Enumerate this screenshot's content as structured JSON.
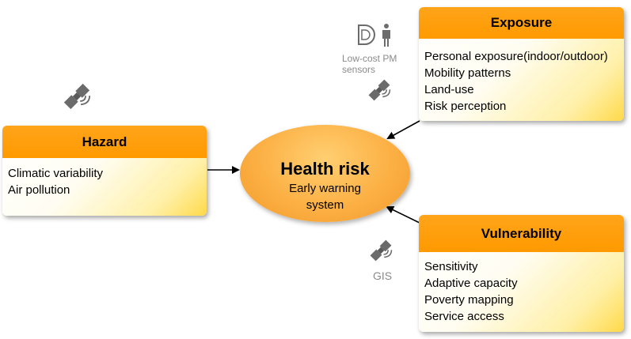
{
  "hazard": {
    "title": "Hazard",
    "items": [
      "Climatic variability",
      "Air pollution"
    ]
  },
  "exposure": {
    "title": "Exposure",
    "items": [
      "Personal exposure(indoor/outdoor)",
      "Mobility patterns",
      "Land-use",
      "Risk perception"
    ]
  },
  "vulnerability": {
    "title": "Vulnerability",
    "items": [
      "Sensitivity",
      "Adaptive capacity",
      "Poverty mapping",
      "Service access"
    ]
  },
  "center": {
    "title": "Health risk",
    "subtitle_line1": "Early warning",
    "subtitle_line2": "system"
  },
  "captions": {
    "pm_line1": "Low-cost PM",
    "pm_line2": "sensors",
    "gis": "GIS"
  },
  "icons": [
    "satellite-icon",
    "pm-sensor-icon",
    "person-icon"
  ],
  "colors": {
    "header_orange": "#ff9a00",
    "ellipse_orange": "#fcb044",
    "box_gradient_end": "#ffd94a",
    "icon_gray": "#6b6b6b"
  }
}
